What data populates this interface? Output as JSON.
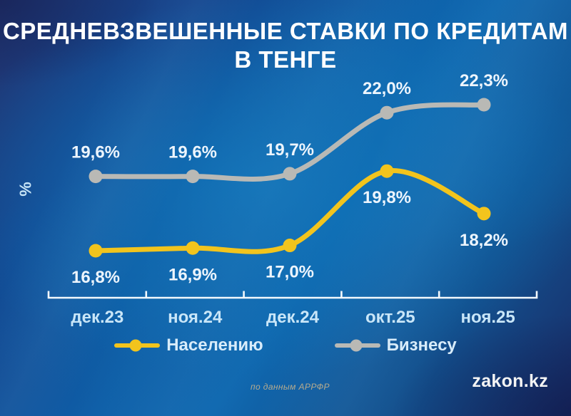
{
  "header": {
    "title_line1": "СРЕДНЕВЗВЕШЕННЫЕ СТАВКИ ПО КРЕДИТАМ",
    "title_line2": "В ТЕНГЕ"
  },
  "chart_data": {
    "type": "line",
    "title": "Средневзвешенные ставки по кредитам в тенге",
    "xlabel": "",
    "ylabel": "%",
    "categories": [
      "дек.23",
      "ноя.24",
      "дек.24",
      "окт.25",
      "ноя.25"
    ],
    "series": [
      {
        "name": "Населению",
        "color": "#f2c41d",
        "values": [
          16.8,
          16.9,
          17.0,
          19.8,
          18.2
        ],
        "labels": [
          "16,8%",
          "16,9%",
          "17,0%",
          "19,8%",
          "18,2%"
        ],
        "label_position": "below"
      },
      {
        "name": "Бизнесу",
        "color": "#b9b9b5",
        "values": [
          19.6,
          19.6,
          19.7,
          22.0,
          22.3
        ],
        "labels": [
          "19,6%",
          "19,6%",
          "19,7%",
          "22,0%",
          "22,3%"
        ],
        "label_position": "above"
      }
    ],
    "legend_position": "bottom",
    "grid": false,
    "ylim": [
      16,
      23
    ]
  },
  "colors": {
    "background_center": "#1173b8",
    "background_edge": "#1a2b66",
    "axis": "#f3f9fd",
    "point_label": "#edf5fd",
    "category_label": "#c9e6f8",
    "legend_label": "#d8ecfa"
  },
  "footer": {
    "source": "по данным АРРФР",
    "logo": "zakon.kz"
  }
}
